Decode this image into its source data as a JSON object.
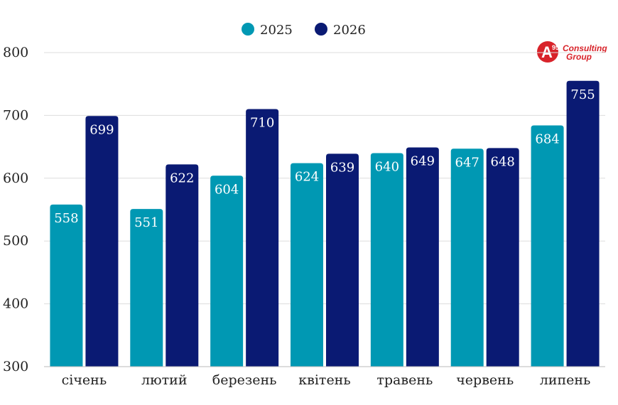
{
  "chart_data": {
    "type": "bar",
    "title": "",
    "categories": [
      "січень",
      "лютий",
      "березень",
      "квітень",
      "травень",
      "червень",
      "липень"
    ],
    "series": [
      {
        "name": "2025",
        "color": "#0098b3",
        "values": [
          558,
          551,
          604,
          624,
          640,
          647,
          684
        ]
      },
      {
        "name": "2026",
        "color": "#0a1a73",
        "values": [
          699,
          622,
          710,
          639,
          649,
          648,
          755
        ]
      }
    ],
    "ylim": [
      300,
      800
    ],
    "yticks": [
      "300",
      "400",
      "500",
      "600",
      "700",
      "800"
    ],
    "xlabel": "",
    "ylabel": "",
    "grid": true,
    "legend_position": "top-center"
  },
  "logo": {
    "mark": "A",
    "mark_sup": "95",
    "line1": "Consulting",
    "line2": "Group",
    "color": "#d8232a"
  }
}
